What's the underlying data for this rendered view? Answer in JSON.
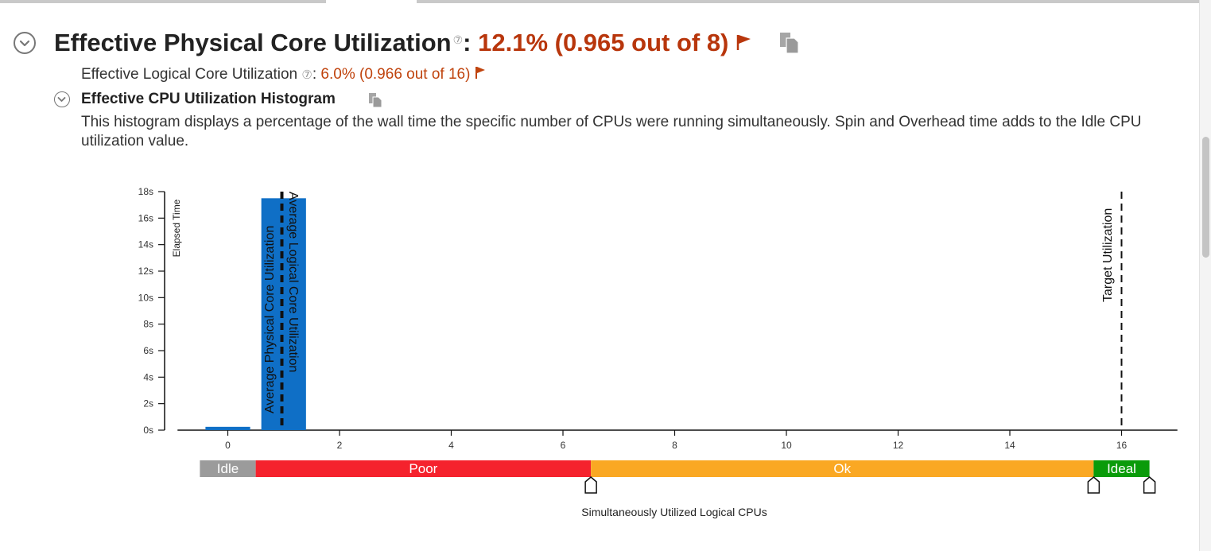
{
  "header": {
    "title": "Effective Physical Core Utilization",
    "help_glyph": "⑦",
    "colon": ":",
    "value": "12.1% (0.965 out of 8)",
    "flag_icon": "flag-icon",
    "copy_icon": "copy-icon",
    "value_color": "#b8360c"
  },
  "sub_metric": {
    "label": "Effective Logical Core Utilization",
    "help_glyph": "⑦",
    "colon": ":",
    "value": "6.0% (0.966 out of 16)"
  },
  "histogram": {
    "title": "Effective CPU Utilization Histogram",
    "description": "This histogram displays a percentage of the wall time the specific number of CPUs were running simultaneously. Spin and Overhead time adds to the Idle CPU utilization value."
  },
  "chart_data": {
    "type": "bar",
    "ylabel": "Elapsed Time",
    "xlabel": "Simultaneously Utilized Logical CPUs",
    "ylim": [
      0,
      18
    ],
    "xlim": [
      -0.9,
      17
    ],
    "y_ticks": [
      "0s",
      "2s",
      "4s",
      "6s",
      "8s",
      "10s",
      "12s",
      "14s",
      "16s",
      "18s"
    ],
    "x_ticks": [
      "0",
      "2",
      "4",
      "6",
      "8",
      "10",
      "12",
      "14",
      "16"
    ],
    "bars": [
      {
        "x": 0,
        "value": 0.25
      },
      {
        "x": 1,
        "value": 17.5
      }
    ],
    "bar_color": "#0f6fc6",
    "markers": [
      {
        "label": "Average Physical Core Utilization",
        "x": 0.965
      },
      {
        "label": "Average Logical Core Utilization",
        "x": 0.966
      },
      {
        "label": "Target Utilization",
        "x": 16
      }
    ],
    "severity_bands": [
      {
        "label": "Idle",
        "from": -0.5,
        "to": 0.5,
        "color": "#9b9b9b"
      },
      {
        "label": "Poor",
        "from": 0.5,
        "to": 6.5,
        "color": "#f5222d"
      },
      {
        "label": "Ok",
        "from": 6.5,
        "to": 15.5,
        "color": "#faa823"
      },
      {
        "label": "Ideal",
        "from": 15.5,
        "to": 16.5,
        "color": "#0a9b0a"
      }
    ],
    "threshold_handles": [
      6.5,
      15.5,
      16.5
    ],
    "grid": false,
    "legend": "none"
  }
}
